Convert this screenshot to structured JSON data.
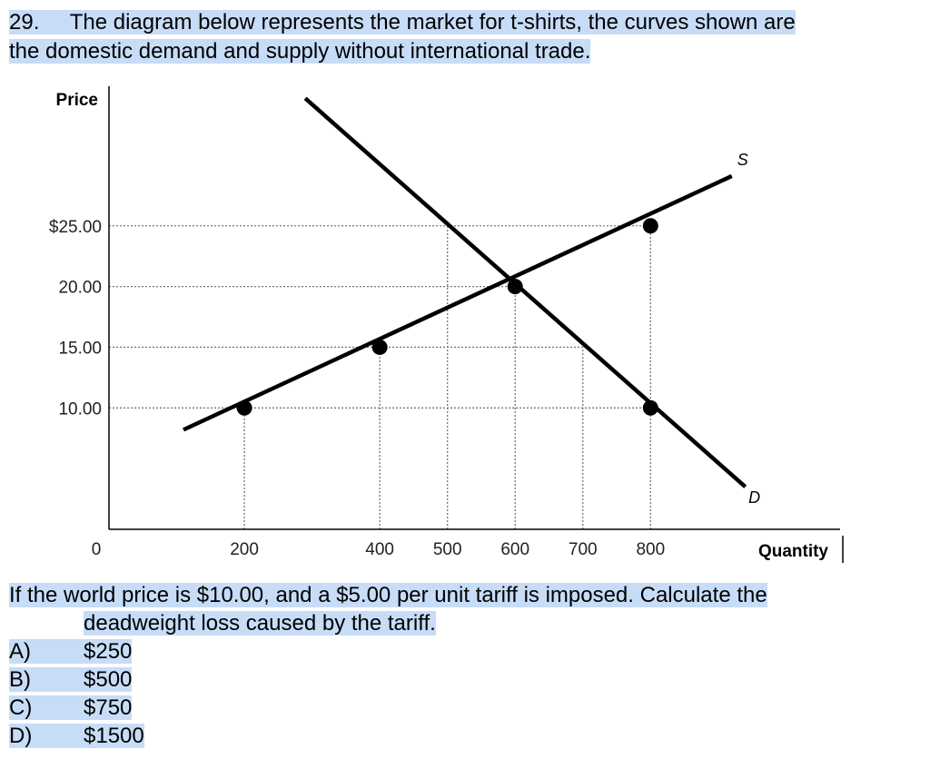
{
  "question": {
    "number": "29.",
    "intro_part1": "The diagram below represents the market for t-shirts, the curves shown are",
    "intro_part2": "the domestic demand and supply without international trade.",
    "prompt_part1": "If the world price is $10.00, and a $5.00 per unit tariff is imposed. Calculate the",
    "prompt_part2": "deadweight loss caused by the tariff."
  },
  "options": [
    {
      "letter": "A)",
      "text": "$250"
    },
    {
      "letter": "B)",
      "text": "$500"
    },
    {
      "letter": "C)",
      "text": "$750"
    },
    {
      "letter": "D)",
      "text": "$1500"
    }
  ],
  "colors": {
    "highlight": "#c7dcf7",
    "curve": "#000000",
    "guide": "#777777"
  },
  "chart_data": {
    "type": "line",
    "xlabel": "Quantity",
    "ylabel": "Price",
    "x_ticks": [
      {
        "value": 0,
        "label": "0"
      },
      {
        "value": 200,
        "label": "200"
      },
      {
        "value": 400,
        "label": "400"
      },
      {
        "value": 500,
        "label": "500"
      },
      {
        "value": 600,
        "label": "600"
      },
      {
        "value": 700,
        "label": "700"
      },
      {
        "value": 800,
        "label": "800"
      }
    ],
    "y_ticks": [
      {
        "value": 10,
        "label": "10.00"
      },
      {
        "value": 15,
        "label": "15.00"
      },
      {
        "value": 20,
        "label": "20.00"
      },
      {
        "value": 25,
        "label": "$25.00"
      }
    ],
    "xlim": [
      0,
      1080
    ],
    "ylim": [
      0,
      36.5
    ],
    "series": [
      {
        "name": "S",
        "points": [
          [
            110,
            8.2
          ],
          [
            920,
            29.1
          ]
        ]
      },
      {
        "name": "D",
        "points": [
          [
            290,
            35.5
          ],
          [
            940,
            3.5
          ]
        ]
      }
    ],
    "highlighted_points": [
      [
        200,
        10
      ],
      [
        400,
        15
      ],
      [
        600,
        20
      ],
      [
        800,
        25
      ],
      [
        800,
        10
      ]
    ],
    "guides": {
      "horizontal": [
        {
          "y": 25,
          "x_to": 800
        },
        {
          "y": 20,
          "x_to": 600
        },
        {
          "y": 15,
          "x_to": 700
        },
        {
          "y": 10,
          "x_to": 800
        }
      ],
      "vertical": [
        {
          "x": 200,
          "y_to": 10
        },
        {
          "x": 400,
          "y_to": 15
        },
        {
          "x": 500,
          "y_to": 25
        },
        {
          "x": 600,
          "y_to": 20
        },
        {
          "x": 700,
          "y_to": 15
        },
        {
          "x": 800,
          "y_to": 25
        }
      ]
    }
  }
}
